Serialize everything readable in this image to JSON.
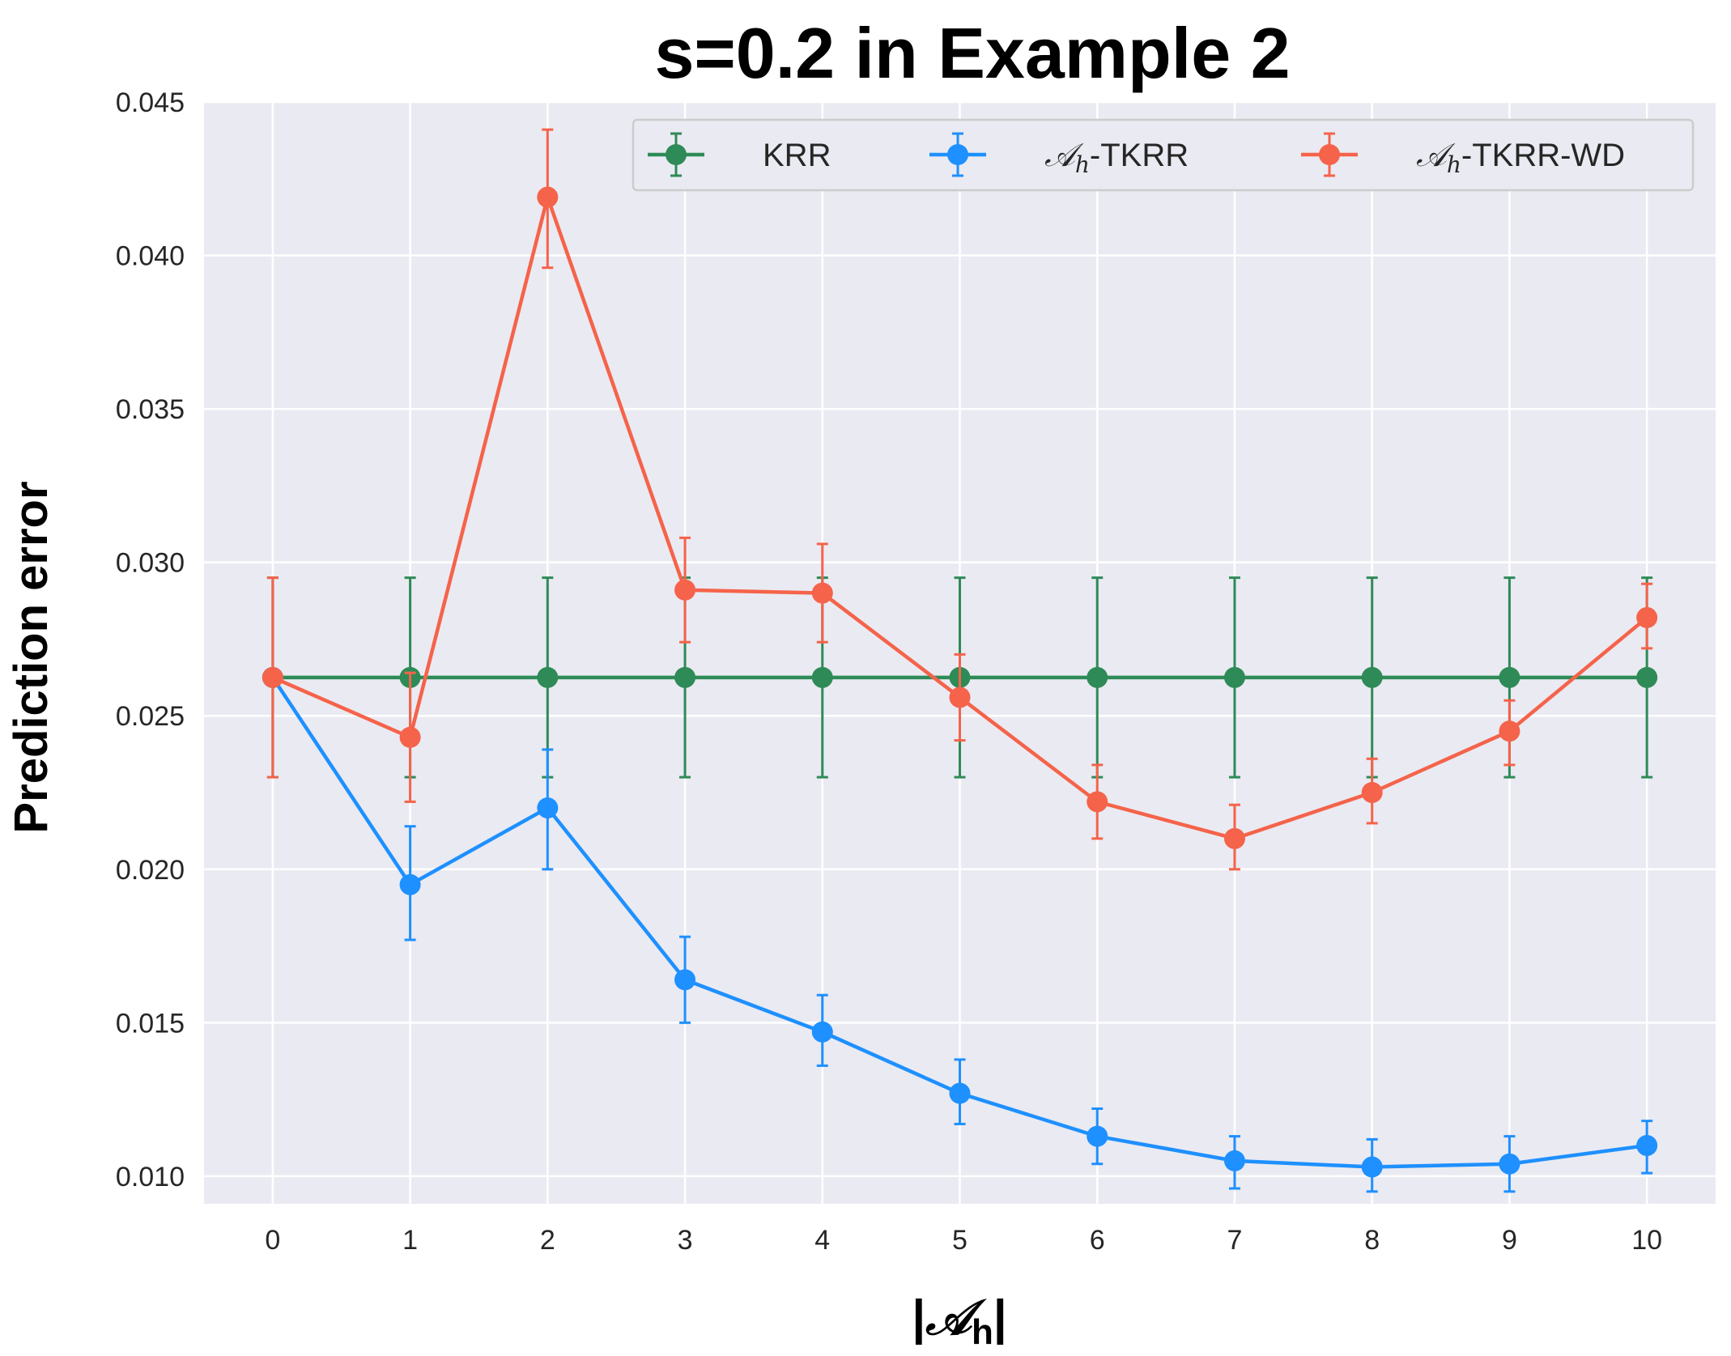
{
  "chart_data": {
    "type": "line",
    "title": "s=0.2 in Example 2",
    "xlabel": {
      "prefix": "|",
      "symbol": "𝒜",
      "sub": "h",
      "suffix": "|"
    },
    "ylabel": "Prediction error",
    "x": [
      0,
      1,
      2,
      3,
      4,
      5,
      6,
      7,
      8,
      9,
      10
    ],
    "xticks": [
      "0",
      "1",
      "2",
      "3",
      "4",
      "5",
      "6",
      "7",
      "8",
      "9",
      "10"
    ],
    "yticks": [
      "0.010",
      "0.015",
      "0.020",
      "0.025",
      "0.030",
      "0.035",
      "0.040",
      "0.045"
    ],
    "ytick_values": [
      0.01,
      0.015,
      0.02,
      0.025,
      0.03,
      0.035,
      0.04,
      0.045
    ],
    "xlim": [
      -0.5,
      10.5
    ],
    "ylim": [
      0.0091,
      0.045
    ],
    "grid": true,
    "legend_position": "top-right",
    "background": "#eaeaf2",
    "series": [
      {
        "label": {
          "symbol": "",
          "sub": "",
          "suffix": "KRR"
        },
        "color": "#2e8b57",
        "values": [
          0.02625,
          0.02625,
          0.02625,
          0.02625,
          0.02625,
          0.02625,
          0.02625,
          0.02625,
          0.02625,
          0.02625,
          0.02625
        ],
        "err_low": [
          0.023,
          0.023,
          0.023,
          0.023,
          0.023,
          0.023,
          0.023,
          0.023,
          0.023,
          0.023,
          0.023
        ],
        "err_high": [
          0.0295,
          0.0295,
          0.0295,
          0.0295,
          0.0295,
          0.0295,
          0.0295,
          0.0295,
          0.0295,
          0.0295,
          0.0295
        ]
      },
      {
        "label": {
          "symbol": "𝒜",
          "sub": "h",
          "suffix": "-TKRR"
        },
        "color": "#1e90ff",
        "values": [
          0.02625,
          0.0195,
          0.022,
          0.0164,
          0.0147,
          0.0127,
          0.0113,
          0.0105,
          0.0103,
          0.0104,
          0.011
        ],
        "err_low": [
          0.02625,
          0.0177,
          0.02,
          0.015,
          0.0136,
          0.0117,
          0.0104,
          0.0096,
          0.0095,
          0.0095,
          0.0101
        ],
        "err_high": [
          0.02625,
          0.0214,
          0.0239,
          0.0178,
          0.0159,
          0.0138,
          0.0122,
          0.0113,
          0.0112,
          0.0113,
          0.0118
        ]
      },
      {
        "label": {
          "symbol": "𝒜",
          "sub": "h",
          "suffix": "-TKRR-WD"
        },
        "color": "#f5634a",
        "values": [
          0.02625,
          0.0243,
          0.0419,
          0.0291,
          0.029,
          0.0256,
          0.0222,
          0.021,
          0.0225,
          0.0245,
          0.0282
        ],
        "err_low": [
          0.023,
          0.0222,
          0.0396,
          0.0274,
          0.0274,
          0.0242,
          0.021,
          0.02,
          0.0215,
          0.0234,
          0.0272
        ],
        "err_high": [
          0.0295,
          0.0264,
          0.0441,
          0.0308,
          0.0306,
          0.027,
          0.0234,
          0.0221,
          0.0236,
          0.0255,
          0.0293
        ]
      }
    ]
  }
}
